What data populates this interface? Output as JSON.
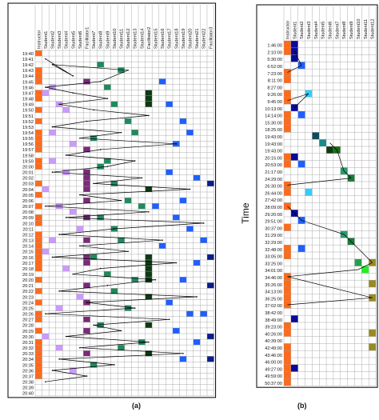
{
  "chart_data": [
    {
      "type": "heatmap",
      "panel_label": "(a)",
      "ylabel": "Time",
      "columns": [
        "Instructor",
        "Student1",
        "Student2",
        "Student3",
        "Student4",
        "Student5",
        "Student6",
        "Facilitator1",
        "Student7",
        "Student8",
        "Student9",
        "Student10",
        "Student11",
        "Student12",
        "Student13",
        "Student14",
        "Facilitator2",
        "Student15",
        "Student16",
        "Student17",
        "Student18",
        "Student19",
        "Student20",
        "Student21",
        "Student22",
        "Facilitator3"
      ],
      "rows": [
        "19:40",
        "19:41",
        "19:42",
        "19:43",
        "19:44",
        "19:45",
        "19:46",
        "19:47",
        "19:48",
        "19:49",
        "19:50",
        "19:51",
        "19:52",
        "19:53",
        "19:54",
        "19:55",
        "19:56",
        "19:57",
        "19:58",
        "19:59",
        "20:00",
        "20:01",
        "20:02",
        "20:03",
        "20:04",
        "20:05",
        "20:06",
        "20:07",
        "20:08",
        "20:09",
        "20:10",
        "20:11",
        "20:12",
        "20:13",
        "20:14",
        "20:15",
        "20:16",
        "20:17",
        "20:18",
        "20:19",
        "20:20",
        "20:21",
        "20:22",
        "20:23",
        "20:24",
        "20:25",
        "20:26",
        "20:27",
        "20:28",
        "20:29",
        "20:30",
        "20:31",
        "20:32",
        "20:33",
        "20:34",
        "20:35",
        "20:36",
        "20:37",
        "20:38",
        "20:39",
        "20:40"
      ],
      "cells": [
        [
          0,
          0
        ],
        [
          0,
          3
        ],
        [
          0,
          4
        ],
        [
          0,
          5
        ],
        [
          0,
          7
        ],
        [
          0,
          8
        ],
        [
          0,
          10
        ],
        [
          0,
          12
        ],
        [
          0,
          14
        ],
        [
          0,
          15
        ],
        [
          0,
          16
        ],
        [
          0,
          17
        ],
        [
          0,
          19
        ],
        [
          0,
          20
        ],
        [
          0,
          23
        ],
        [
          0,
          25
        ],
        [
          0,
          27
        ],
        [
          0,
          29
        ],
        [
          0,
          30
        ],
        [
          0,
          32
        ],
        [
          0,
          33
        ],
        [
          0,
          34
        ],
        [
          0,
          35
        ],
        [
          0,
          36
        ],
        [
          0,
          37
        ],
        [
          0,
          38
        ],
        [
          0,
          40
        ],
        [
          0,
          42
        ],
        [
          0,
          44
        ],
        [
          0,
          46
        ],
        [
          0,
          47
        ],
        [
          0,
          49
        ],
        [
          0,
          51
        ],
        [
          0,
          52
        ],
        [
          0,
          53
        ],
        [
          0,
          54
        ],
        [
          0,
          55
        ],
        [
          0,
          56
        ],
        [
          0,
          57
        ],
        [
          1,
          7
        ],
        [
          2,
          6
        ],
        [
          2,
          14
        ],
        [
          3,
          9
        ],
        [
          4,
          21
        ],
        [
          5,
          16
        ],
        [
          1,
          24
        ],
        [
          3,
          27
        ],
        [
          2,
          33
        ],
        [
          4,
          38
        ],
        [
          6,
          43
        ],
        [
          1,
          50
        ],
        [
          3,
          52
        ],
        [
          5,
          56
        ],
        [
          2,
          19
        ],
        [
          4,
          10
        ],
        [
          6,
          31
        ],
        [
          1,
          35
        ],
        [
          3,
          45
        ],
        [
          5,
          28
        ],
        [
          7,
          5
        ],
        [
          7,
          17
        ],
        [
          7,
          21
        ],
        [
          7,
          22
        ],
        [
          7,
          23
        ],
        [
          7,
          24
        ],
        [
          7,
          26
        ],
        [
          7,
          29
        ],
        [
          7,
          33
        ],
        [
          7,
          36
        ],
        [
          7,
          37
        ],
        [
          7,
          41
        ],
        [
          7,
          44
        ],
        [
          7,
          47
        ],
        [
          7,
          49
        ],
        [
          7,
          53
        ],
        [
          9,
          2
        ],
        [
          10,
          6
        ],
        [
          11,
          9
        ],
        [
          12,
          3
        ],
        [
          13,
          12
        ],
        [
          8,
          15
        ],
        [
          10,
          19
        ],
        [
          11,
          23
        ],
        [
          13,
          26
        ],
        [
          9,
          29
        ],
        [
          12,
          33
        ],
        [
          8,
          36
        ],
        [
          10,
          39
        ],
        [
          11,
          42
        ],
        [
          13,
          45
        ],
        [
          9,
          48
        ],
        [
          12,
          52
        ],
        [
          8,
          55
        ],
        [
          14,
          14
        ],
        [
          15,
          27
        ],
        [
          14,
          40
        ],
        [
          15,
          51
        ],
        [
          11,
          31
        ],
        [
          9,
          20
        ],
        [
          16,
          7
        ],
        [
          16,
          8
        ],
        [
          16,
          9
        ],
        [
          16,
          24
        ],
        [
          16,
          36
        ],
        [
          16,
          37
        ],
        [
          16,
          38
        ],
        [
          16,
          39
        ],
        [
          16,
          40
        ],
        [
          16,
          43
        ],
        [
          16,
          48
        ],
        [
          16,
          53
        ],
        [
          18,
          5
        ],
        [
          19,
          9
        ],
        [
          21,
          12
        ],
        [
          22,
          14
        ],
        [
          20,
          16
        ],
        [
          19,
          21
        ],
        [
          23,
          22
        ],
        [
          21,
          26
        ],
        [
          20,
          29
        ],
        [
          22,
          31
        ],
        [
          18,
          34
        ],
        [
          23,
          37
        ],
        [
          21,
          40
        ],
        [
          19,
          44
        ],
        [
          22,
          46
        ],
        [
          20,
          49
        ],
        [
          23,
          51
        ],
        [
          21,
          54
        ],
        [
          17,
          27
        ],
        [
          24,
          33
        ],
        [
          24,
          46
        ],
        [
          25,
          23
        ],
        [
          25,
          36
        ],
        [
          25,
          41
        ],
        [
          25,
          50
        ],
        [
          25,
          54
        ]
      ],
      "transitions": [
        [
          1,
          1
        ],
        [
          5,
          4
        ],
        [
          2,
          2
        ],
        [
          13,
          3
        ],
        [
          9,
          5
        ],
        [
          1,
          6
        ],
        [
          5,
          7
        ],
        [
          10,
          8
        ],
        [
          3,
          9
        ],
        [
          8,
          10
        ],
        [
          16,
          11
        ],
        [
          7,
          12
        ],
        [
          2,
          13
        ],
        [
          12,
          14
        ],
        [
          6,
          15
        ],
        [
          20,
          16
        ],
        [
          9,
          17
        ],
        [
          4,
          18
        ],
        [
          14,
          19
        ],
        [
          10,
          20
        ],
        [
          2,
          21
        ],
        [
          15,
          22
        ],
        [
          8,
          23
        ],
        [
          22,
          24
        ],
        [
          6,
          25
        ],
        [
          12,
          26
        ],
        [
          1,
          27
        ],
        [
          16,
          28
        ],
        [
          4,
          29
        ],
        [
          24,
          30
        ],
        [
          11,
          31
        ],
        [
          3,
          32
        ],
        [
          18,
          33
        ],
        [
          6,
          34
        ],
        [
          13,
          35
        ],
        [
          2,
          36
        ],
        [
          20,
          37
        ],
        [
          9,
          38
        ],
        [
          5,
          39
        ],
        [
          17,
          40
        ],
        [
          10,
          41
        ],
        [
          3,
          42
        ],
        [
          23,
          43
        ],
        [
          7,
          44
        ],
        [
          14,
          45
        ],
        [
          1,
          46
        ],
        [
          19,
          47
        ],
        [
          8,
          48
        ],
        [
          12,
          49
        ],
        [
          4,
          50
        ],
        [
          16,
          51
        ],
        [
          6,
          52
        ],
        [
          21,
          53
        ],
        [
          3,
          54
        ],
        [
          11,
          55
        ],
        [
          2,
          56
        ],
        [
          7,
          57
        ],
        [
          1,
          58
        ]
      ]
    },
    {
      "type": "heatmap",
      "panel_label": "(b)",
      "ylabel": "Time",
      "columns": [
        "Instructor",
        "Student1",
        "Student2",
        "Student3",
        "Student4",
        "Student5",
        "Student6",
        "Student7",
        "Student8",
        "Student9",
        "Student10",
        "Student11",
        "Student12"
      ],
      "rows": [
        "1:46:00",
        "2:10:00",
        "5:30:00",
        "6:52:00",
        "7:23:00",
        "8:11:00",
        "8:27:00",
        "9:26:00",
        "9:45:00",
        "10:13:00",
        "14:14:00",
        "15:30:00",
        "18:25:00",
        "19:43:00",
        "19:43:00",
        "19:43:00",
        "20:15:00",
        "20:53:00",
        "21:17:00",
        "24:29:00",
        "26:30:00",
        "26:44:00",
        "27:42:00",
        "28:09:00",
        "29:20:00",
        "29:51:00",
        "30:37:00",
        "31:29:00",
        "32:29:00",
        "32:48:00",
        "33:05:00",
        "33:25:00",
        "34:01:00",
        "34:46:00",
        "35:26:00",
        "34:13:00",
        "36:25:00",
        "37:02:00",
        "38:42:00",
        "38:49:00",
        "39:23:00",
        "40:26:00",
        "40:39:00",
        "42:49:00",
        "43:46:00",
        "46:00:00",
        "49:27:00",
        "49:59:00",
        "50:37:00"
      ],
      "cells": [
        [
          0,
          0
        ],
        [
          0,
          1
        ],
        [
          0,
          4
        ],
        [
          0,
          5
        ],
        [
          0,
          7
        ],
        [
          0,
          8
        ],
        [
          0,
          10
        ],
        [
          0,
          11
        ],
        [
          0,
          12
        ],
        [
          0,
          16
        ],
        [
          0,
          17
        ],
        [
          0,
          20
        ],
        [
          0,
          21
        ],
        [
          0,
          23
        ],
        [
          0,
          26
        ],
        [
          0,
          29
        ],
        [
          0,
          30
        ],
        [
          0,
          33
        ],
        [
          0,
          34
        ],
        [
          0,
          35
        ],
        [
          0,
          36
        ],
        [
          0,
          37
        ],
        [
          0,
          40
        ],
        [
          0,
          41
        ],
        [
          0,
          43
        ],
        [
          0,
          44
        ],
        [
          0,
          45
        ],
        [
          0,
          46
        ],
        [
          0,
          47
        ],
        [
          0,
          48
        ],
        [
          1,
          0
        ],
        [
          1,
          1
        ],
        [
          1,
          2
        ],
        [
          2,
          3
        ],
        [
          1,
          9
        ],
        [
          2,
          10
        ],
        [
          1,
          16
        ],
        [
          2,
          17
        ],
        [
          3,
          21
        ],
        [
          1,
          24
        ],
        [
          2,
          25
        ],
        [
          2,
          29
        ],
        [
          1,
          39
        ],
        [
          1,
          46
        ],
        [
          3,
          7
        ],
        [
          4,
          13
        ],
        [
          5,
          14
        ],
        [
          6,
          15
        ],
        [
          7,
          15
        ],
        [
          8,
          18
        ],
        [
          9,
          19
        ],
        [
          9,
          28
        ],
        [
          8,
          27
        ],
        [
          10,
          31
        ],
        [
          11,
          32
        ],
        [
          12,
          34
        ],
        [
          12,
          31
        ],
        [
          12,
          36
        ],
        [
          12,
          41
        ],
        [
          12,
          43
        ]
      ],
      "links": [
        [
          [
            1,
            1
          ],
          [
            2,
            3
          ]
        ],
        [
          [
            2,
            3
          ],
          [
            0,
            4
          ]
        ],
        [
          [
            0,
            8
          ],
          [
            3,
            7
          ]
        ],
        [
          [
            3,
            7
          ],
          [
            1,
            9
          ]
        ],
        [
          [
            6,
            14
          ],
          [
            7,
            15
          ]
        ],
        [
          [
            7,
            15
          ],
          [
            8,
            18
          ]
        ],
        [
          [
            8,
            18
          ],
          [
            9,
            19
          ]
        ],
        [
          [
            9,
            19
          ],
          [
            0,
            20
          ]
        ],
        [
          [
            0,
            23
          ],
          [
            2,
            25
          ]
        ],
        [
          [
            2,
            25
          ],
          [
            8,
            27
          ]
        ],
        [
          [
            8,
            27
          ],
          [
            11,
            30
          ]
        ],
        [
          [
            11,
            30
          ],
          [
            12,
            31
          ]
        ],
        [
          [
            12,
            31
          ],
          [
            10,
            32
          ]
        ],
        [
          [
            10,
            32
          ],
          [
            0,
            33
          ]
        ],
        [
          [
            0,
            33
          ],
          [
            12,
            36
          ]
        ],
        [
          [
            12,
            36
          ],
          [
            0,
            37
          ]
        ]
      ]
    }
  ]
}
